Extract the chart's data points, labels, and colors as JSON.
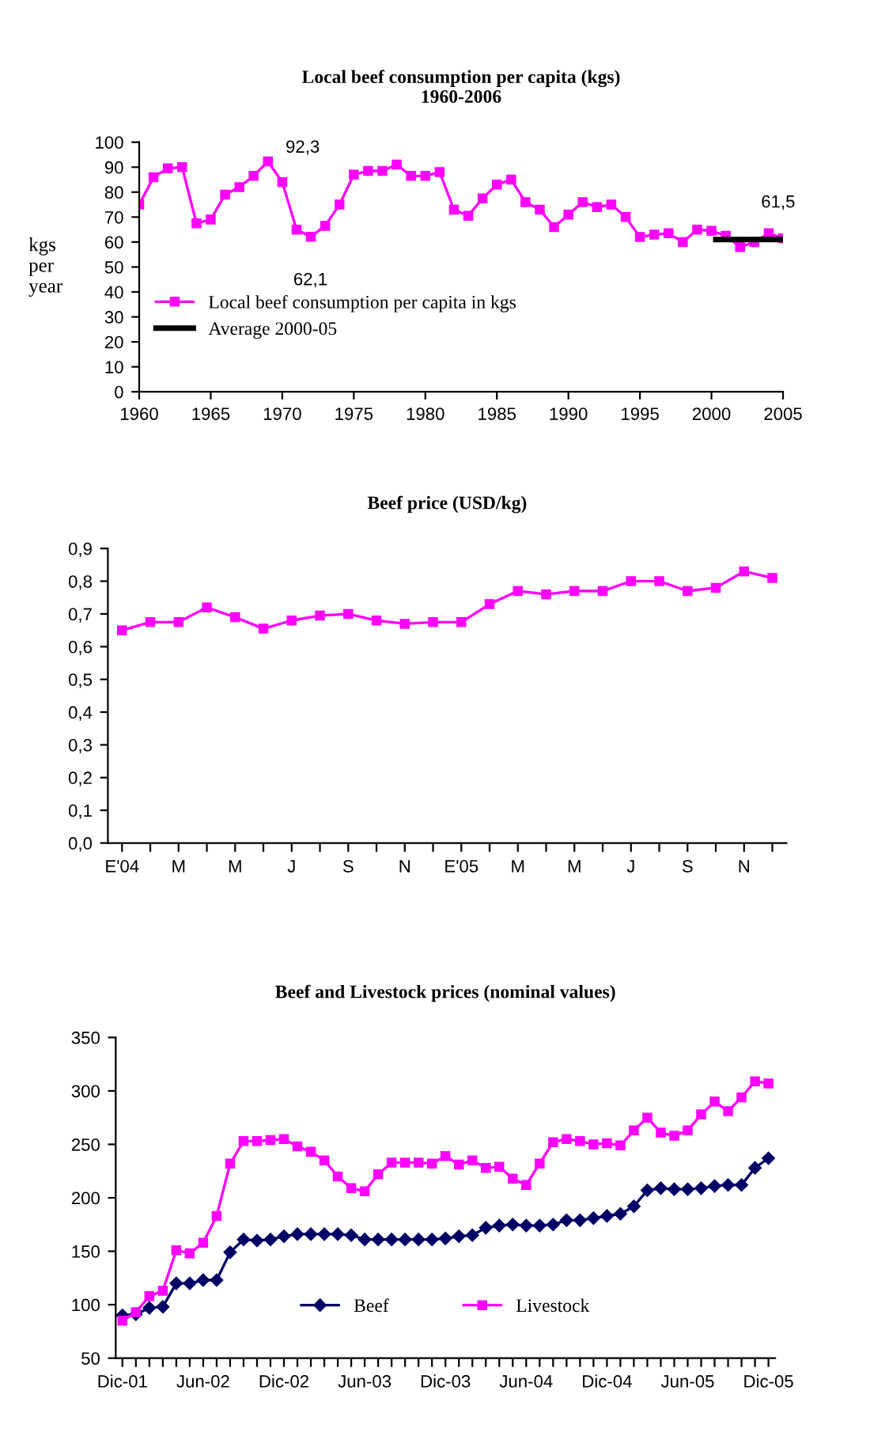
{
  "chart_data": [
    {
      "type": "line",
      "title": "Local beef consumption per capita (kgs)\n1960-2006",
      "ylabel": "kgs\nper\nyear",
      "xlim": [
        1960,
        2005
      ],
      "xticks": [
        1960,
        1965,
        1970,
        1975,
        1980,
        1985,
        1990,
        1995,
        2000,
        2005
      ],
      "ylim": [
        0,
        100
      ],
      "yticks": [
        0,
        10,
        20,
        30,
        40,
        50,
        60,
        70,
        80,
        90,
        100
      ],
      "legend": "left",
      "grid": false,
      "series": [
        {
          "name": "Local beef consumption per capita in kgs",
          "color": "#ff00ff",
          "marker": "square",
          "x": [
            1960,
            1961,
            1962,
            1963,
            1964,
            1965,
            1966,
            1967,
            1968,
            1969,
            1970,
            1971,
            1972,
            1973,
            1974,
            1975,
            1976,
            1977,
            1978,
            1979,
            1980,
            1981,
            1982,
            1983,
            1984,
            1985,
            1986,
            1987,
            1988,
            1989,
            1990,
            1991,
            1992,
            1993,
            1994,
            1995,
            1996,
            1997,
            1998,
            1999,
            2000,
            2001,
            2002,
            2003,
            2004,
            2005
          ],
          "values": [
            75,
            86,
            89.5,
            90,
            67.5,
            69,
            79,
            82,
            86.5,
            92.3,
            84,
            65,
            62.1,
            66.5,
            75,
            87,
            88.5,
            88.5,
            91,
            86.5,
            86.5,
            88,
            73,
            70.5,
            77.5,
            83,
            85,
            76,
            73,
            66,
            71,
            76,
            74,
            75,
            70,
            62,
            63,
            63.5,
            60,
            65,
            64.5,
            62.5,
            58,
            60,
            63.5,
            61.5
          ]
        },
        {
          "name": "Average 2000-05",
          "color": "#000000",
          "marker": "none",
          "x": [
            2000.3,
            2005
          ],
          "values": [
            61,
            61
          ]
        }
      ],
      "annotations": [
        {
          "text": "92,3",
          "x": 1969,
          "y": 92.3
        },
        {
          "text": "62,1",
          "x": 1972,
          "y": 62.1
        },
        {
          "text": "61,5",
          "x": 2005,
          "y": 61.5
        }
      ]
    },
    {
      "type": "line",
      "title": "Beef price (USD/kg)",
      "categories": [
        "E'04",
        null,
        "M",
        null,
        "M",
        null,
        "J",
        null,
        "S",
        null,
        "N",
        null,
        "E'05",
        null,
        "M",
        null,
        "M",
        null,
        "J",
        null,
        "S",
        null,
        "N",
        null
      ],
      "ylim": [
        0,
        0.9
      ],
      "yticks": [
        {
          "value": 0,
          "label": "0,0"
        },
        {
          "value": 0.1,
          "label": "0,1"
        },
        {
          "value": 0.2,
          "label": "0,2"
        },
        {
          "value": 0.3,
          "label": "0,3"
        },
        {
          "value": 0.4,
          "label": "0,4"
        },
        {
          "value": 0.5,
          "label": "0,5"
        },
        {
          "value": 0.6,
          "label": "0,6"
        },
        {
          "value": 0.7,
          "label": "0,7"
        },
        {
          "value": 0.8,
          "label": "0,8"
        },
        {
          "value": 0.9,
          "label": "0,9"
        }
      ],
      "grid": false,
      "legend": false,
      "series": [
        {
          "color": "#ff00ff",
          "marker": "square",
          "values": [
            0.65,
            0.675,
            0.675,
            0.72,
            0.69,
            0.655,
            0.68,
            0.695,
            0.7,
            0.68,
            0.67,
            0.675,
            0.675,
            0.73,
            0.77,
            0.76,
            0.77,
            0.77,
            0.8,
            0.8,
            0.77,
            0.78,
            0.83,
            0.81
          ]
        }
      ]
    },
    {
      "type": "line",
      "title": "Beef and Livestock prices (nominal values)",
      "categories": [
        "Dic-01",
        null,
        null,
        null,
        null,
        null,
        "Jun-02",
        null,
        null,
        null,
        null,
        null,
        "Dic-02",
        null,
        null,
        null,
        null,
        null,
        "Jun-03",
        null,
        null,
        null,
        null,
        null,
        "Dic-03",
        null,
        null,
        null,
        null,
        null,
        "Jun-04",
        null,
        null,
        null,
        null,
        null,
        "Dic-04",
        null,
        null,
        null,
        null,
        null,
        "Jun-05",
        null,
        null,
        null,
        null,
        null,
        "Dic-05"
      ],
      "ylim": [
        50,
        350
      ],
      "yticks": [
        50,
        100,
        150,
        200,
        250,
        300,
        350
      ],
      "grid": false,
      "legend": "bottom",
      "series": [
        {
          "name": "Beef",
          "color": "#000066",
          "marker": "diamond",
          "values": [
            90,
            91,
            97,
            98,
            120,
            120,
            123,
            123,
            149,
            161,
            160,
            161,
            164,
            166,
            166,
            166,
            166,
            165,
            161,
            161,
            161,
            161,
            161,
            161,
            162,
            164,
            165,
            172,
            174,
            175,
            174,
            174,
            175,
            179,
            179,
            181,
            183,
            185,
            192,
            207,
            209,
            208,
            208,
            209,
            211,
            212,
            212,
            228,
            237
          ]
        },
        {
          "name": "Livestock",
          "color": "#ff00ff",
          "marker": "square",
          "values": [
            85,
            93,
            108,
            113,
            151,
            148,
            158,
            183,
            232,
            253,
            253,
            254,
            255,
            248,
            243,
            235,
            220,
            209,
            206,
            222,
            233,
            233,
            233,
            232,
            239,
            231,
            235,
            228,
            229,
            218,
            212,
            232,
            252,
            255,
            253,
            250,
            251,
            249,
            263,
            275,
            261,
            258,
            263,
            278,
            290,
            281,
            294,
            309,
            307
          ]
        }
      ]
    }
  ]
}
